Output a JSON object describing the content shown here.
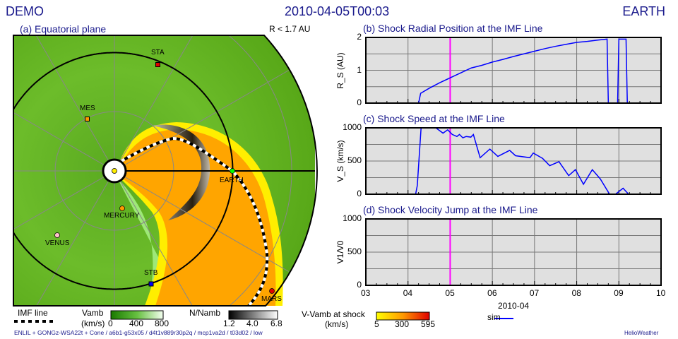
{
  "header": {
    "left": "DEMO",
    "center": "2010-04-05T00:03",
    "right": "EARTH"
  },
  "panel_a": {
    "title": "(a) Equatorial plane",
    "range": "R < 1.7 AU",
    "bodies": [
      {
        "name": "STA",
        "color": "#e00000",
        "marker": "square"
      },
      {
        "name": "MES",
        "color": "#ff9900",
        "marker": "square"
      },
      {
        "name": "MERCURY",
        "color": "#ff9900",
        "marker": "circle"
      },
      {
        "name": "VENUS",
        "color": "#ffc0cb",
        "marker": "circle"
      },
      {
        "name": "STB",
        "color": "#0000ff",
        "marker": "square"
      },
      {
        "name": "EARTH",
        "color": "#00ff00",
        "marker": "circle"
      },
      {
        "name": "MARS",
        "color": "#e00000",
        "marker": "circle"
      }
    ]
  },
  "legend": {
    "imf_line": "IMF line",
    "vamb": {
      "label": "Vamb",
      "unit": "(km/s)",
      "ticks": [
        "0",
        "400",
        "800"
      ]
    },
    "namb": {
      "label": "N/Namb",
      "ticks": [
        "1.2",
        "4.0",
        "6.8"
      ]
    },
    "vshock": {
      "label": "V-Vamb at shock",
      "unit": "(km/s)",
      "ticks": [
        "5",
        "300",
        "595"
      ]
    },
    "sim": "sim"
  },
  "footer": {
    "run": "ENLIL + GONGz-WSA22t + Cone / a6b1-g53x05 / d4t1v889r30p2q / mcp1va2d / t03d02 / low",
    "brand": "HelioWeather"
  },
  "chart_data": [
    {
      "type": "line",
      "title": "(b) Shock Radial Position at the IMF Line",
      "ylabel": "R_S (AU)",
      "ylim": [
        0,
        2
      ],
      "yticks": [
        "0",
        "1",
        "2"
      ],
      "xlim": [
        3,
        10
      ],
      "grid": true,
      "current_time": 5.0,
      "series": [
        {
          "name": "sim",
          "color": "#0000ff",
          "x": [
            3,
            4.25,
            4.3,
            4.5,
            4.75,
            5,
            5.25,
            5.5,
            5.75,
            6,
            6.25,
            6.5,
            6.75,
            7,
            7.25,
            7.5,
            7.75,
            8,
            8.25,
            8.5,
            8.72,
            8.75,
            8.97,
            9.0,
            9.17,
            9.2,
            10
          ],
          "y": [
            0,
            0,
            0.3,
            0.45,
            0.62,
            0.77,
            0.92,
            1.07,
            1.15,
            1.25,
            1.33,
            1.42,
            1.5,
            1.58,
            1.66,
            1.73,
            1.79,
            1.85,
            1.88,
            1.92,
            1.95,
            0,
            0,
            1.95,
            1.95,
            0,
            0
          ]
        }
      ]
    },
    {
      "type": "line",
      "title": "(c) Shock Speed at the IMF Line",
      "ylabel": "V_S (km/s)",
      "ylim": [
        0,
        1000
      ],
      "yticks": [
        "0",
        "500",
        "1000"
      ],
      "xlim": [
        3,
        10
      ],
      "grid": true,
      "current_time": 5.0,
      "series": [
        {
          "name": "sim",
          "color": "#0000ff",
          "x": [
            3,
            4.18,
            4.22,
            4.31,
            4.5,
            4.66,
            4.83,
            4.94,
            5.05,
            5.16,
            5.22,
            5.3,
            5.38,
            5.49,
            5.55,
            5.71,
            5.94,
            6.13,
            6.41,
            6.55,
            6.89,
            6.97,
            7.19,
            7.36,
            7.58,
            7.81,
            7.97,
            8.16,
            8.37,
            8.56,
            8.78,
            8.92,
            9.1,
            9.23,
            10
          ],
          "y": [
            0,
            0,
            130,
            1100,
            1100,
            1000,
            920,
            970,
            900,
            870,
            900,
            850,
            870,
            860,
            900,
            550,
            680,
            570,
            660,
            580,
            550,
            620,
            540,
            430,
            490,
            280,
            370,
            150,
            370,
            230,
            0,
            0,
            90,
            0,
            0
          ]
        }
      ]
    },
    {
      "type": "line",
      "title": "(d) Shock Velocity Jump at the IMF Line",
      "ylabel": "V1/V0",
      "ylim": [
        0,
        1000
      ],
      "yticks": [
        "0",
        "500",
        "1000"
      ],
      "xlim": [
        3,
        10
      ],
      "grid": true,
      "current_time": 5.0,
      "xticks": [
        "03",
        "04",
        "05",
        "06",
        "07",
        "08",
        "09",
        "10"
      ],
      "xlabel": "2010-04",
      "series": []
    }
  ]
}
